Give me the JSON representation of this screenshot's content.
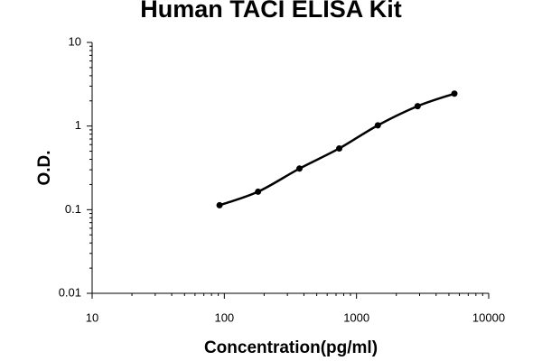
{
  "chart_data": {
    "type": "scatter",
    "title": "Human TACI ELISA Kit",
    "x_label": "Concentration(pg/ml)",
    "y_label": "O.D.",
    "log_x": true,
    "log_y": true,
    "grid": false,
    "smooth_line": true,
    "series": [
      {
        "color": "#000000",
        "x": [
          92,
          180,
          370,
          740,
          1450,
          2900,
          5500
        ],
        "values": [
          0.113,
          0.164,
          0.31,
          0.54,
          1.02,
          1.73,
          2.44
        ]
      }
    ],
    "xlim": [
      10,
      10000
    ],
    "xticks": [
      10,
      100,
      1000,
      10000
    ],
    "ylim": [
      0.01,
      10
    ],
    "yticks": [
      0.01,
      0.1,
      1,
      10
    ]
  }
}
